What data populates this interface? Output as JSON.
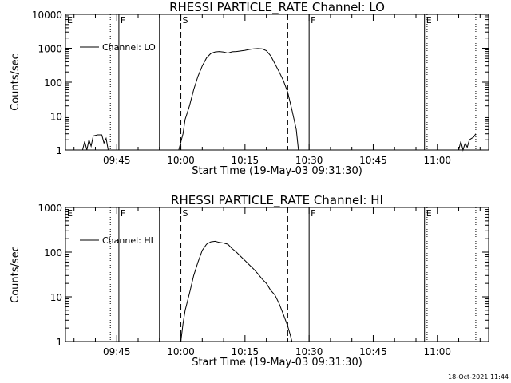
{
  "chart_data": [
    {
      "type": "line",
      "title": "RHESSI PARTICLE_RATE Channel: LO",
      "xlabel": "Start Time (19-May-03 09:31:30)",
      "ylabel": "Counts/sec",
      "xlim": [
        "09:33",
        "11:12"
      ],
      "ylim": [
        1,
        10000
      ],
      "yscale": "log",
      "x_ticks": [
        "09:45",
        "10:00",
        "10:15",
        "10:30",
        "10:45",
        "11:00"
      ],
      "y_ticks": [
        "1",
        "10",
        "100",
        "1000",
        "10000"
      ],
      "legend": {
        "position": "top-left",
        "entries": [
          "Channel: LO"
        ]
      },
      "series": [
        {
          "name": "Channel: LO",
          "points": [
            [
              "09:37",
              1
            ],
            [
              "09:37.5",
              1.8
            ],
            [
              "09:38",
              1
            ],
            [
              "09:38.5",
              2.0
            ],
            [
              "09:39",
              1.3
            ],
            [
              "09:39.5",
              2.6
            ],
            [
              "09:40.5",
              2.8
            ],
            [
              "09:41.5",
              2.8
            ],
            [
              "09:42",
              1.6
            ],
            [
              "09:42.5",
              2.2
            ],
            [
              "09:43",
              1
            ],
            [
              "09:59.5",
              1
            ],
            [
              "10:00.5",
              3
            ],
            [
              "10:01",
              8
            ],
            [
              "10:02",
              20
            ],
            [
              "10:03",
              60
            ],
            [
              "10:04",
              150
            ],
            [
              "10:05",
              300
            ],
            [
              "10:06",
              520
            ],
            [
              "10:07",
              700
            ],
            [
              "10:08",
              780
            ],
            [
              "10:09",
              800
            ],
            [
              "10:10",
              770
            ],
            [
              "10:11",
              720
            ],
            [
              "10:12",
              790
            ],
            [
              "10:13",
              800
            ],
            [
              "10:14",
              830
            ],
            [
              "10:15",
              870
            ],
            [
              "10:16",
              920
            ],
            [
              "10:17",
              960
            ],
            [
              "10:18",
              980
            ],
            [
              "10:19",
              960
            ],
            [
              "10:20",
              850
            ],
            [
              "10:21",
              600
            ],
            [
              "10:22",
              350
            ],
            [
              "10:23",
              200
            ],
            [
              "10:24",
              110
            ],
            [
              "10:25",
              50
            ],
            [
              "10:26",
              15
            ],
            [
              "10:27",
              4
            ],
            [
              "10:27.5",
              1
            ],
            [
              "11:05",
              1
            ],
            [
              "11:05.5",
              1.8
            ],
            [
              "11:06",
              1
            ],
            [
              "11:06.5",
              1.6
            ],
            [
              "11:07",
              1.2
            ],
            [
              "11:07.5",
              2.0
            ],
            [
              "11:08",
              2.2
            ],
            [
              "11:08.5",
              2.4
            ],
            [
              "11:09",
              3.0
            ]
          ]
        }
      ],
      "markers": [
        {
          "label": "E",
          "time": "09:33",
          "style": "none"
        },
        {
          "label": "",
          "time": "09:43.5",
          "style": "dotted"
        },
        {
          "label": "F",
          "time": "09:45.5",
          "style": "solid"
        },
        {
          "label": "",
          "time": "09:55",
          "style": "solid"
        },
        {
          "label": "S",
          "time": "10:00",
          "style": "dashed"
        },
        {
          "label": "",
          "time": "10:25",
          "style": "dashed"
        },
        {
          "label": "F",
          "time": "10:30",
          "style": "solid"
        },
        {
          "label": "E",
          "time": "10:57",
          "style": "solid"
        },
        {
          "label": "",
          "time": "10:57.6",
          "style": "dotted"
        },
        {
          "label": "",
          "time": "11:09",
          "style": "dotted"
        }
      ]
    },
    {
      "type": "line",
      "title": "RHESSI PARTICLE_RATE Channel: HI",
      "xlabel": "Start Time (19-May-03 09:31:30)",
      "ylabel": "Counts/sec",
      "xlim": [
        "09:33",
        "11:12"
      ],
      "ylim": [
        1,
        1000
      ],
      "yscale": "log",
      "x_ticks": [
        "09:45",
        "10:00",
        "10:15",
        "10:30",
        "10:45",
        "11:00"
      ],
      "y_ticks": [
        "1",
        "10",
        "100",
        "1000"
      ],
      "legend": {
        "position": "top-left",
        "entries": [
          "Channel: HI"
        ]
      },
      "series": [
        {
          "name": "Channel: HI",
          "points": [
            [
              "10:00",
              1
            ],
            [
              "10:00.5",
              2.5
            ],
            [
              "10:01",
              5
            ],
            [
              "10:02",
              12
            ],
            [
              "10:03",
              30
            ],
            [
              "10:04",
              60
            ],
            [
              "10:05",
              110
            ],
            [
              "10:06",
              150
            ],
            [
              "10:07",
              170
            ],
            [
              "10:08",
              175
            ],
            [
              "10:09",
              165
            ],
            [
              "10:10",
              160
            ],
            [
              "10:11",
              150
            ],
            [
              "10:12",
              120
            ],
            [
              "10:13",
              100
            ],
            [
              "10:14",
              80
            ],
            [
              "10:15",
              65
            ],
            [
              "10:16",
              52
            ],
            [
              "10:17",
              42
            ],
            [
              "10:18",
              33
            ],
            [
              "10:19",
              25
            ],
            [
              "10:20",
              20
            ],
            [
              "10:21",
              14
            ],
            [
              "10:22",
              11
            ],
            [
              "10:23",
              7
            ],
            [
              "10:24",
              4
            ],
            [
              "10:25",
              2.2
            ],
            [
              "10:25.5",
              1.5
            ],
            [
              "10:26",
              1
            ]
          ]
        }
      ],
      "markers": [
        {
          "label": "E",
          "time": "09:33",
          "style": "none"
        },
        {
          "label": "",
          "time": "09:43.5",
          "style": "dotted"
        },
        {
          "label": "F",
          "time": "09:45.5",
          "style": "solid"
        },
        {
          "label": "",
          "time": "09:55",
          "style": "solid"
        },
        {
          "label": "S",
          "time": "10:00",
          "style": "dashed"
        },
        {
          "label": "",
          "time": "10:25",
          "style": "dashed"
        },
        {
          "label": "F",
          "time": "10:30",
          "style": "solid"
        },
        {
          "label": "E",
          "time": "10:57",
          "style": "solid"
        },
        {
          "label": "",
          "time": "10:57.6",
          "style": "dotted"
        },
        {
          "label": "",
          "time": "11:09",
          "style": "dotted"
        }
      ]
    }
  ],
  "footer": {
    "timestamp": "18-Oct-2021 11:44"
  }
}
